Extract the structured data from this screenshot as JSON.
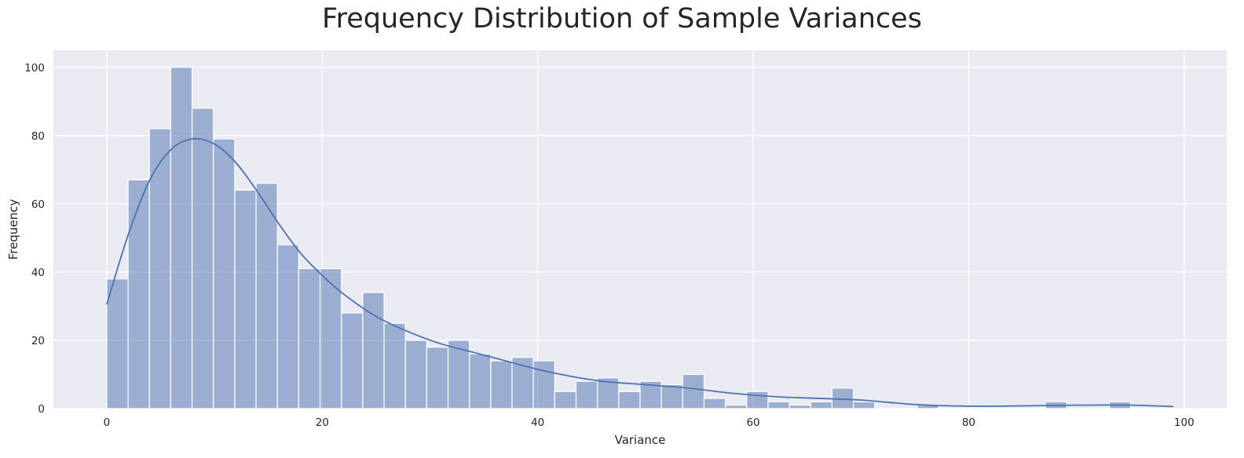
{
  "chart_data": {
    "type": "bar",
    "title": "Frequency Distribution of Sample Variances",
    "xlabel": "Variance",
    "ylabel": "Frequency",
    "xlim": [
      -4.95,
      103.95
    ],
    "ylim": [
      0,
      105
    ],
    "x_ticks": [
      0,
      20,
      40,
      60,
      80,
      100
    ],
    "y_ticks": [
      0,
      20,
      40,
      60,
      80,
      100
    ],
    "grid": true,
    "bin_start": 0,
    "bin_width": 1.98,
    "values": [
      38,
      67,
      82,
      100,
      88,
      79,
      64,
      66,
      48,
      41,
      41,
      28,
      34,
      25,
      20,
      18,
      20,
      16,
      14,
      15,
      14,
      5,
      8,
      9,
      5,
      8,
      7,
      10,
      3,
      1,
      5,
      2,
      1,
      2,
      6,
      2,
      0,
      0,
      1,
      0,
      0,
      0,
      0,
      0,
      2,
      0,
      0,
      2,
      0,
      0
    ],
    "kde": {
      "x": [
        0,
        2,
        4,
        6,
        8,
        10,
        12,
        14,
        16,
        18,
        20,
        22,
        25,
        28,
        31,
        34,
        37,
        40,
        43,
        46,
        50,
        54,
        58,
        62,
        66,
        70,
        75,
        80,
        85,
        90,
        95,
        99
      ],
      "y": [
        30.5,
        51,
        67,
        76,
        79,
        77.5,
        72,
        63.5,
        54,
        45.5,
        39,
        33.5,
        27,
        22.5,
        19,
        16.5,
        14,
        11.5,
        9.5,
        8,
        7,
        6,
        4.5,
        3.5,
        3,
        2.5,
        1.2,
        0.7,
        0.8,
        1,
        1,
        0.6
      ]
    },
    "colors": {
      "bar_fill": "#4c72b0",
      "bar_opacity": 0.5,
      "bar_edge": "#ffffff",
      "kde_line": "#4c72b0",
      "plot_background": "#eaeaf2",
      "grid": "#ffffff"
    }
  }
}
